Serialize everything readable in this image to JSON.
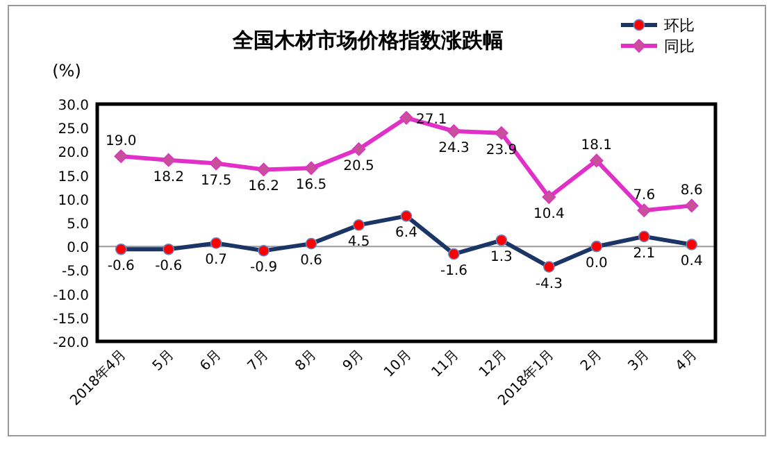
{
  "chart_data": {
    "type": "line",
    "title": "全国木材市场价格指数涨跌幅",
    "ylabel": "(%)",
    "categories": [
      "2018年4月",
      "5月",
      "6月",
      "7月",
      "8月",
      "9月",
      "10月",
      "11月",
      "12月",
      "2018年1月",
      "2月",
      "3月",
      "4月"
    ],
    "series": [
      {
        "name": "环比",
        "color": "#1b3567",
        "marker": "circle",
        "values": [
          -0.6,
          -0.6,
          0.7,
          -0.9,
          0.6,
          4.5,
          6.4,
          -1.6,
          1.3,
          -4.3,
          0.0,
          2.1,
          0.4
        ],
        "value_labels": [
          "-0.6",
          "-0.6",
          "0.7",
          "-0.9",
          "0.6",
          "4.5",
          "6.4",
          "-1.6",
          "1.3",
          "-4.3",
          "0.0",
          "2.1",
          "0.4"
        ]
      },
      {
        "name": "同比",
        "color": "#e030c8",
        "marker": "diamond",
        "values": [
          19.0,
          18.2,
          17.5,
          16.2,
          16.5,
          20.5,
          27.1,
          24.3,
          23.9,
          10.4,
          18.1,
          7.6,
          8.6
        ],
        "value_labels": [
          "19.0",
          "18.2",
          "17.5",
          "16.2",
          "16.5",
          "20.5",
          "27.1",
          "24.3",
          "23.9",
          "10.4",
          "18.1",
          "7.6",
          "8.6"
        ]
      }
    ],
    "ylim": [
      -20,
      30
    ],
    "yticks": [
      {
        "value": -20,
        "label": "-20.0"
      },
      {
        "value": -15,
        "label": "-15.0"
      },
      {
        "value": -10,
        "label": "-10.0"
      },
      {
        "value": -5,
        "label": "-5.0"
      },
      {
        "value": 0,
        "label": "0.0"
      },
      {
        "value": 5,
        "label": "5.0"
      },
      {
        "value": 10,
        "label": "10.0"
      },
      {
        "value": 15,
        "label": "15.0"
      },
      {
        "value": 20,
        "label": "20.0"
      },
      {
        "value": 25,
        "label": "25.0"
      },
      {
        "value": 30,
        "label": "30.0"
      }
    ],
    "legend": "top right",
    "line_style": "solid"
  }
}
